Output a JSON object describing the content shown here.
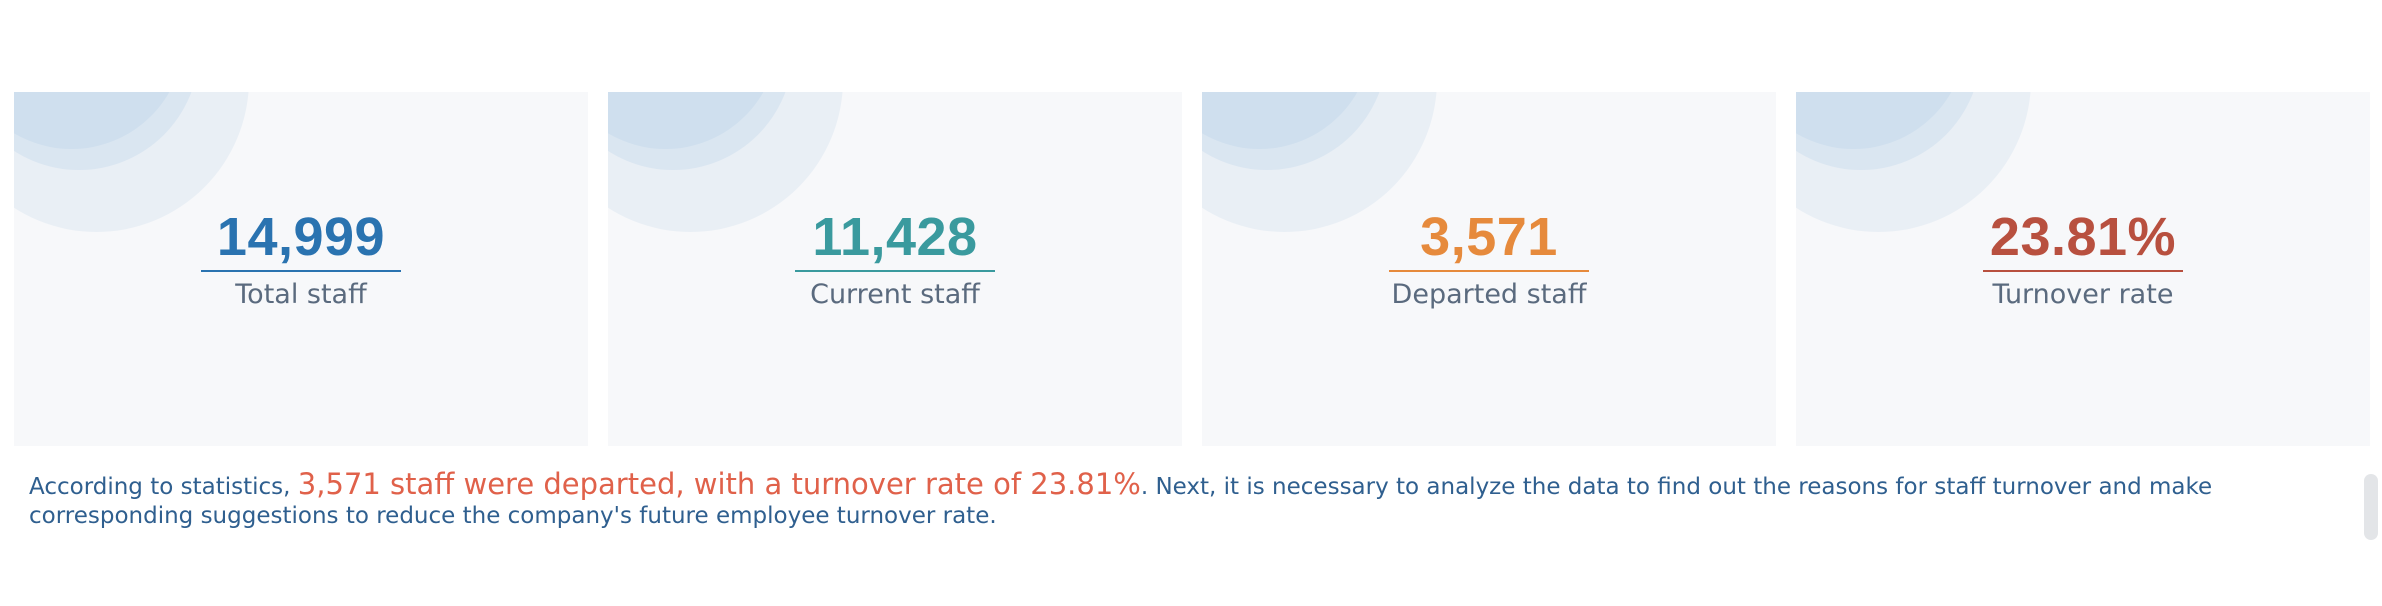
{
  "metrics": [
    {
      "value": "14,999",
      "label": "Total staff",
      "color": "#2a73b0"
    },
    {
      "value": "11,428",
      "label": "Current staff",
      "color": "#3a9a9e"
    },
    {
      "value": "3,571",
      "label": "Departed staff",
      "color": "#e68a3c"
    },
    {
      "value": "23.81%",
      "label": "Turnover rate",
      "color": "#b8503f"
    }
  ],
  "summary": {
    "prefix": "According to statistics, ",
    "highlight": "3,571 staff were departed, with a turnover rate of 23.81%",
    "suffix": ". Next, it is necessary to analyze the data to find out the reasons for staff turnover and make corresponding suggestions to reduce the company's future employee turnover rate.",
    "highlight_color": "#e0614a"
  }
}
